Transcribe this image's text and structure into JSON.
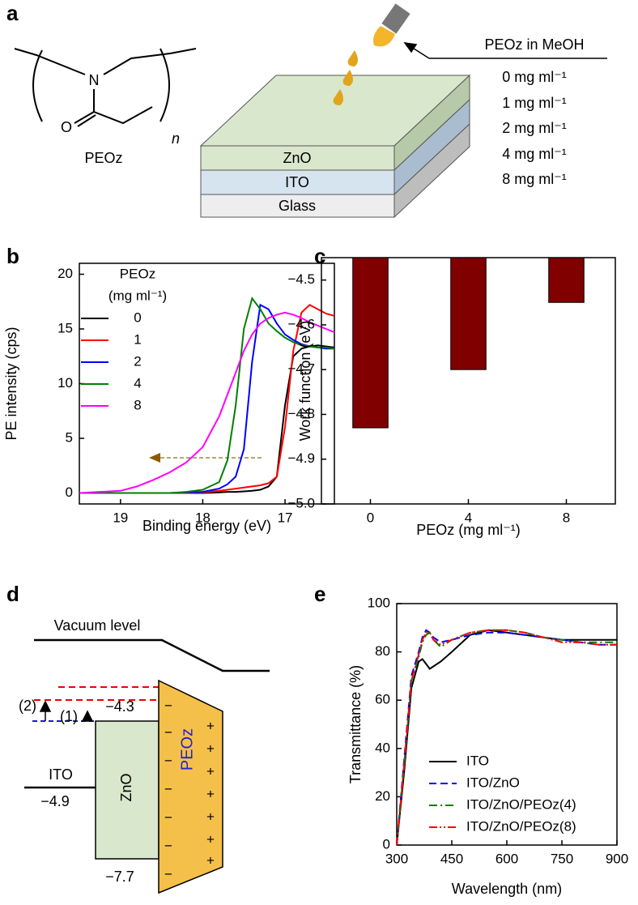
{
  "diagram_a": {
    "label": "a",
    "atom_n": "N",
    "atom_o": "O",
    "subscript": "n",
    "molecule": "PEOz",
    "layers": [
      "ZnO",
      "ITO",
      "Glass"
    ],
    "solution": "PEOz in MeOH",
    "concentrations": [
      "0 mg ml⁻¹",
      "1 mg ml⁻¹",
      "2 mg ml⁻¹",
      "4 mg ml⁻¹",
      "8 mg ml⁻¹"
    ]
  },
  "diagram_d": {
    "label": "d",
    "vacuum": "Vacuum level",
    "step2": "(2)",
    "step1": "(1)",
    "zno_top": "−4.3",
    "ito": "ITO",
    "ito_level": "−4.9",
    "zno": "ZnO",
    "peoz": "PEOz",
    "zno_bottom": "−7.7",
    "minus": "−",
    "plus": "+"
  },
  "chart_data": [
    {
      "type": "line",
      "label": "b",
      "x_label": "Binding energy (eV)",
      "y_label": "PE intensity (cps)",
      "legend_title": [
        "PEOz",
        "(mg ml⁻¹)"
      ],
      "legend": "upper left",
      "xlim": [
        19.5,
        16.4
      ],
      "xticks": [
        19,
        18,
        17
      ],
      "ylim": [
        -1,
        21
      ],
      "yticks": [
        0,
        5,
        10,
        15,
        20
      ],
      "x": [
        19.5,
        19.0,
        18.8,
        18.6,
        18.4,
        18.2,
        18.0,
        17.8,
        17.7,
        17.6,
        17.5,
        17.4,
        17.3,
        17.2,
        17.1,
        17.0,
        16.9,
        16.8,
        16.7,
        16.6,
        16.5,
        16.4
      ],
      "series": [
        {
          "name": "0",
          "color": "#000000",
          "dash": "solid",
          "values": [
            0,
            0,
            0,
            0,
            0,
            0,
            0,
            0.05,
            0.1,
            0.1,
            0.15,
            0.2,
            0.3,
            0.6,
            1.5,
            8,
            12.5,
            13.2,
            13.4,
            13.5,
            13.4,
            13.3
          ]
        },
        {
          "name": "1",
          "color": "#ff0000",
          "dash": "solid",
          "values": [
            0,
            0,
            0,
            0,
            0,
            0,
            0.05,
            0.2,
            0.3,
            0.4,
            0.5,
            0.6,
            0.7,
            0.9,
            1.5,
            6,
            13,
            16.5,
            17.2,
            16.8,
            16.4,
            16.2
          ]
        },
        {
          "name": "2",
          "color": "#0000ff",
          "dash": "solid",
          "values": [
            0,
            0,
            0,
            0,
            0,
            0.05,
            0.1,
            0.4,
            0.8,
            1.5,
            4,
            12,
            17.2,
            16.8,
            15.5,
            14.5,
            14,
            13.6,
            13.4,
            13.3,
            13.2,
            13.2
          ]
        },
        {
          "name": "4",
          "color": "#008000",
          "dash": "solid",
          "values": [
            0,
            0,
            0,
            0,
            0,
            0.1,
            0.3,
            1,
            3,
            8,
            15,
            17.8,
            16.8,
            15.5,
            14.8,
            14.2,
            13.8,
            13.5,
            13.4,
            13.3,
            13.3,
            13.2
          ]
        },
        {
          "name": "8",
          "color": "#ff00ff",
          "dash": "solid",
          "values": [
            0,
            0.2,
            0.6,
            1.2,
            1.9,
            2.8,
            4.2,
            7,
            9,
            11,
            13,
            14.5,
            15.5,
            16,
            16.3,
            16.5,
            16.3,
            16,
            15.6,
            15.3,
            15,
            14.7
          ]
        }
      ]
    },
    {
      "type": "bar",
      "label": "c",
      "x_label": "PEOz (mg ml⁻¹)",
      "y_label": "Work function (eV)",
      "categories": [
        "0",
        "4",
        "8"
      ],
      "values": [
        -4.83,
        -4.7,
        -4.55
      ],
      "color": "#800000",
      "ylim": [
        -5.0,
        -4.45
      ],
      "yticks": [
        {
          "value": -5.0,
          "label": "−5.0"
        },
        {
          "value": -4.9,
          "label": "−4.9"
        },
        {
          "value": -4.8,
          "label": "−4.8"
        },
        {
          "value": -4.7,
          "label": "−4.7"
        },
        {
          "value": -4.6,
          "label": "−4.6"
        },
        {
          "value": -4.5,
          "label": "−4.5"
        }
      ]
    },
    {
      "type": "line",
      "label": "e",
      "x_label": "Wavelength (nm)",
      "y_label": "Transmittance (%)",
      "legend": "lower right",
      "xlim": [
        300,
        900
      ],
      "xticks": [
        300,
        450,
        600,
        750,
        900
      ],
      "ylim": [
        0,
        100
      ],
      "yticks": [
        0,
        20,
        40,
        60,
        80,
        100
      ],
      "x": [
        300,
        320,
        340,
        360,
        370,
        380,
        390,
        400,
        420,
        450,
        500,
        550,
        600,
        650,
        700,
        750,
        800,
        850,
        900
      ],
      "series": [
        {
          "name": "ITO",
          "color": "#000000",
          "dash": "solid",
          "values": [
            0,
            30,
            65,
            76,
            77,
            75,
            73,
            74,
            76,
            80,
            87,
            89,
            88,
            87,
            86,
            85,
            85,
            85,
            85
          ]
        },
        {
          "name": "ITO/ZnO",
          "color": "#0000ff",
          "dash": "dashed",
          "values": [
            0,
            35,
            70,
            80,
            86,
            89,
            88,
            86,
            84,
            85,
            87,
            88,
            88,
            87,
            86,
            85,
            84,
            83,
            83
          ]
        },
        {
          "name": "ITO/ZnO/PEOz(4)",
          "color": "#008000",
          "dash": "dashdot",
          "values": [
            0,
            33,
            68,
            78,
            84,
            87,
            88,
            85,
            82,
            85,
            88,
            89,
            89,
            88,
            86,
            85,
            84,
            84,
            84
          ]
        },
        {
          "name": "ITO/ZnO/PEOz(8)",
          "color": "#ff0000",
          "dash": "dashdotdot",
          "values": [
            0,
            33,
            68,
            79,
            85,
            88,
            88,
            85,
            83,
            85,
            88,
            89,
            89,
            88,
            86,
            84,
            84,
            83,
            83
          ]
        }
      ]
    }
  ]
}
